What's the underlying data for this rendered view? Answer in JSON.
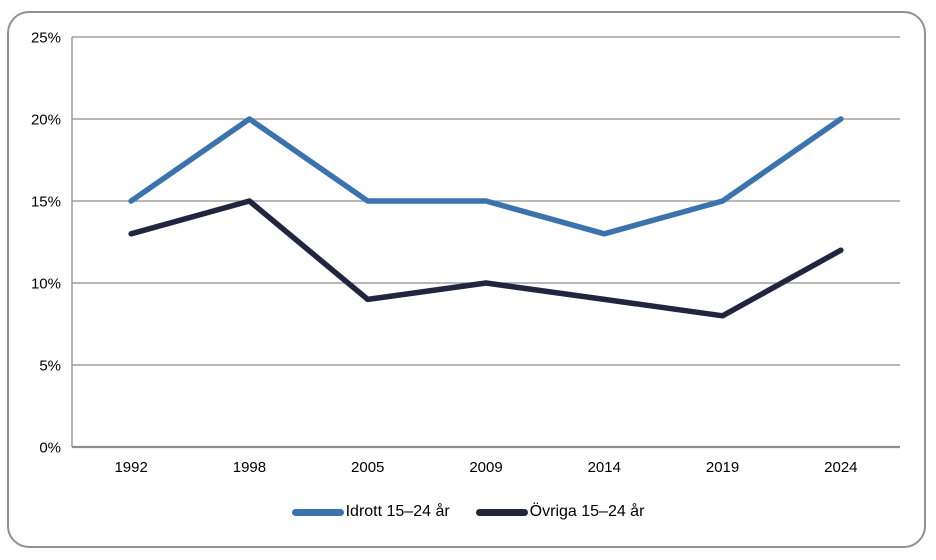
{
  "chart_data": {
    "type": "line",
    "categories": [
      "1992",
      "1998",
      "2005",
      "2009",
      "2014",
      "2019",
      "2024"
    ],
    "series": [
      {
        "name": "Idrott 15–24 år",
        "color": "#3B73AE",
        "values": [
          15,
          20,
          15,
          15,
          13,
          15,
          20
        ]
      },
      {
        "name": "Övriga 15–24 år",
        "color": "#22253F",
        "values": [
          13,
          15,
          9,
          10,
          9,
          8,
          12
        ]
      }
    ],
    "title": "",
    "xlabel": "",
    "ylabel": "",
    "ylim": [
      0,
      25
    ],
    "ytick_step": 5,
    "ytick_labels": [
      "0%",
      "5%",
      "10%",
      "15%",
      "20%",
      "25%"
    ],
    "grid": "horizontal",
    "legend_position": "bottom-center"
  },
  "colors": {
    "gridline": "#8E8E8E",
    "axis": "#8A8A8A",
    "frame_border": "#919191",
    "background": "#FFFFFF",
    "text": "#000000"
  }
}
